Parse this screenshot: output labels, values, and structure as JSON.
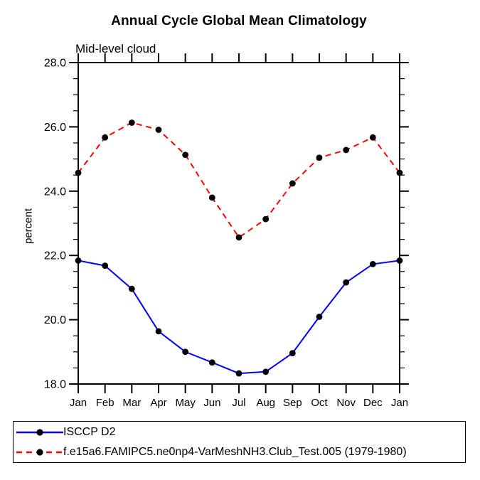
{
  "title": "Annual Cycle Global Mean Climatology",
  "subtitle": "Mid-level cloud",
  "ylabel": "percent",
  "colors": {
    "axis": "#000000",
    "marker": "#000000",
    "series_blue": "#0000ff",
    "series_red": "#ff0000",
    "background": "#ffffff"
  },
  "chart_data": {
    "type": "line",
    "categories": [
      "Jan",
      "Feb",
      "Mar",
      "Apr",
      "May",
      "Jun",
      "Jul",
      "Aug",
      "Sep",
      "Oct",
      "Nov",
      "Dec",
      "Jan"
    ],
    "series": [
      {
        "name": "ISCCP D2",
        "color": "#0000ff",
        "line_style": "solid",
        "marker": "filled-circle",
        "marker_color": "#000000",
        "values": [
          21.84,
          21.68,
          20.96,
          19.64,
          19.0,
          18.67,
          18.33,
          18.38,
          18.96,
          20.09,
          21.16,
          21.73,
          21.84
        ]
      },
      {
        "name": "f.e15a6.FAMIPC5.ne0np4-VarMeshNH3.Club_Test.005 (1979-1980)",
        "color": "#ff0000",
        "line_style": "dashed",
        "marker": "filled-circle",
        "marker_color": "#000000",
        "values": [
          24.57,
          25.67,
          26.13,
          25.91,
          25.13,
          23.8,
          22.56,
          23.13,
          24.24,
          25.04,
          25.28,
          25.67,
          24.57
        ]
      }
    ],
    "title": "Annual Cycle Global Mean Climatology",
    "subtitle": "Mid-level cloud",
    "xlabel": "",
    "ylabel": "percent",
    "ylim": [
      18.0,
      28.0
    ],
    "ytick_major": [
      18.0,
      20.0,
      22.0,
      24.0,
      26.0,
      28.0
    ],
    "ytick_labels": [
      "18.0",
      "20.0",
      "22.0",
      "24.0",
      "26.0",
      "28.0"
    ],
    "ytick_minor_step": 0.5,
    "grid": false,
    "legend_position": "bottom-left"
  }
}
